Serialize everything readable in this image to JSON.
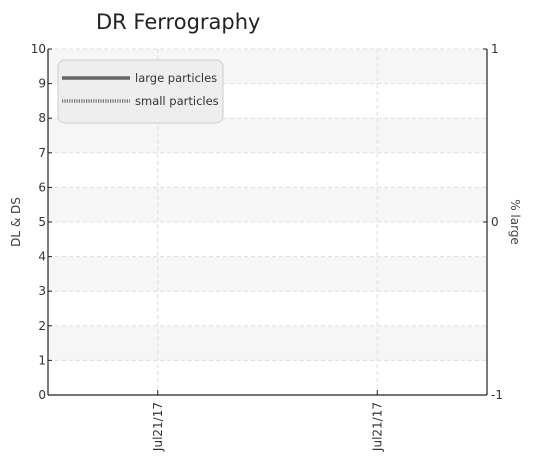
{
  "chart_data": {
    "type": "line",
    "title": "DR Ferrography",
    "ylabel_left": "DL & DS",
    "ylabel_right": "% large",
    "y_left_ticks": [
      "0",
      "1",
      "2",
      "3",
      "4",
      "5",
      "6",
      "7",
      "8",
      "9",
      "10"
    ],
    "y_left_range": [
      0,
      10
    ],
    "y_right_ticks": [
      "-1",
      "0",
      "1"
    ],
    "y_right_range": [
      -1,
      1
    ],
    "x_ticks": [
      "Jul21/17",
      "Jul21/17"
    ],
    "grid": true,
    "legend_position": "top-left",
    "series": [
      {
        "name": "large particles",
        "style": "solid",
        "color": "#666666",
        "values": []
      },
      {
        "name": "small particles",
        "style": "dotted",
        "color": "#777777",
        "values": []
      }
    ]
  }
}
